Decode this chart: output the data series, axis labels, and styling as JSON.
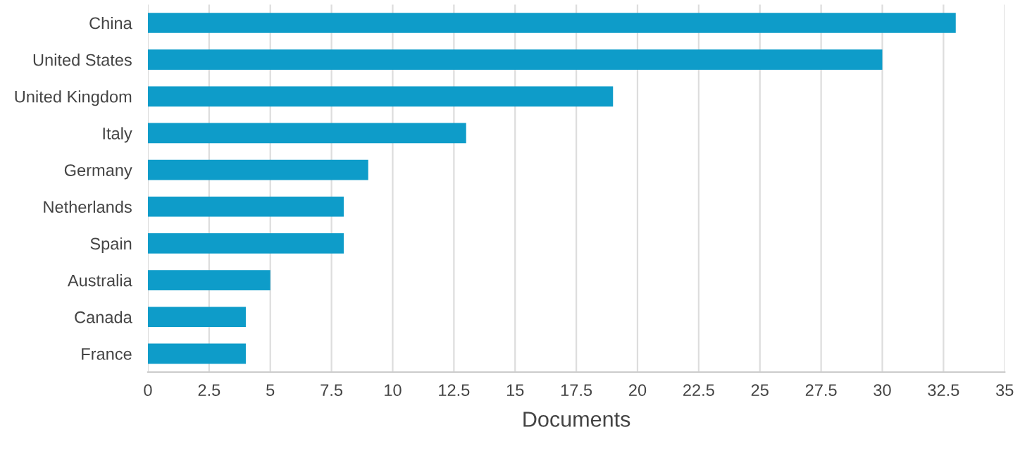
{
  "chart_data": {
    "type": "bar",
    "orientation": "horizontal",
    "xlabel": "Documents",
    "categories": [
      "China",
      "United States",
      "United Kingdom",
      "Italy",
      "Germany",
      "Netherlands",
      "Spain",
      "Australia",
      "Canada",
      "France"
    ],
    "values": [
      33,
      30,
      19,
      13,
      9,
      8,
      8,
      5,
      4,
      4
    ],
    "color": "#0e9cc9",
    "xlim": [
      0,
      35
    ],
    "xticks": [
      0,
      2.5,
      5,
      7.5,
      10,
      12.5,
      15,
      17.5,
      20,
      22.5,
      25,
      27.5,
      30,
      32.5,
      35
    ],
    "grid": "x"
  }
}
